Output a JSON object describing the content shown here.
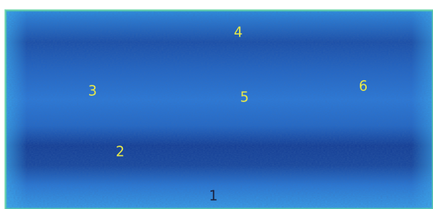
{
  "labels": [
    "4",
    "3",
    "5",
    "6",
    "2",
    "1"
  ]
}
